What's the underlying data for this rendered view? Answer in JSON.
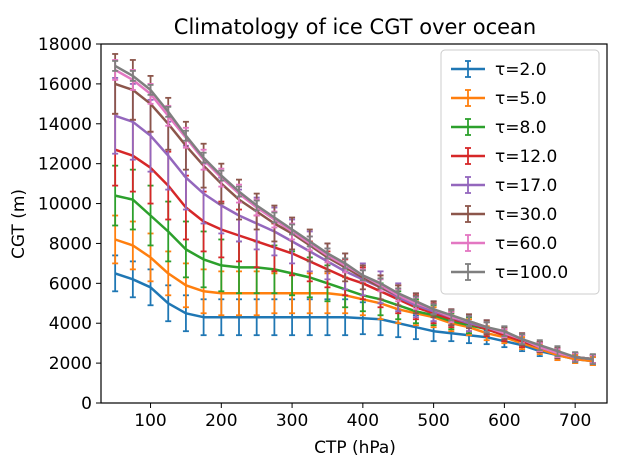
{
  "chart_data": {
    "type": "line",
    "title": "Climatology of ice CGT over ocean",
    "xlabel": "CTP (hPa)",
    "ylabel": "CGT (m)",
    "xlim": [
      30,
      745
    ],
    "ylim": [
      0,
      18000
    ],
    "xticks": [
      100,
      200,
      300,
      400,
      500,
      600,
      700
    ],
    "yticks": [
      0,
      2000,
      4000,
      6000,
      8000,
      10000,
      12000,
      14000,
      16000,
      18000
    ],
    "grid": false,
    "legend_position": "top-right",
    "legend_symbol": "τ",
    "x": [
      50,
      75,
      100,
      125,
      150,
      175,
      200,
      225,
      250,
      275,
      300,
      325,
      350,
      375,
      400,
      425,
      450,
      475,
      500,
      525,
      550,
      575,
      600,
      625,
      650,
      675,
      700,
      725
    ],
    "series": [
      {
        "name": "τ=2.0",
        "color": "#1f77b4",
        "values": [
          6500,
          6200,
          5800,
          5000,
          4500,
          4300,
          4300,
          4300,
          4300,
          4300,
          4300,
          4300,
          4300,
          4300,
          4250,
          4200,
          4000,
          3800,
          3600,
          3500,
          3400,
          3300,
          3100,
          2900,
          2600,
          2400,
          2200,
          2100
        ],
        "err": [
          900,
          900,
          900,
          900,
          900,
          900,
          900,
          900,
          900,
          900,
          900,
          900,
          900,
          900,
          800,
          800,
          700,
          600,
          500,
          400,
          400,
          350,
          300,
          300,
          250,
          250,
          200,
          200
        ]
      },
      {
        "name": "τ=5.0",
        "color": "#ff7f0e",
        "values": [
          8200,
          7900,
          7300,
          6500,
          5900,
          5600,
          5500,
          5500,
          5500,
          5500,
          5500,
          5500,
          5500,
          5400,
          5200,
          5000,
          4700,
          4500,
          4300,
          4000,
          3800,
          3500,
          3300,
          3000,
          2700,
          2400,
          2200,
          2100
        ],
        "err": [
          1200,
          1200,
          1200,
          1100,
          1100,
          1100,
          1100,
          1100,
          1100,
          1000,
          1000,
          1000,
          1000,
          900,
          800,
          800,
          700,
          600,
          500,
          400,
          400,
          350,
          300,
          300,
          250,
          250,
          200,
          200
        ]
      },
      {
        "name": "τ=8.0",
        "color": "#2ca02c",
        "values": [
          10400,
          10200,
          9400,
          8600,
          7700,
          7200,
          6900,
          6800,
          6800,
          6700,
          6500,
          6300,
          6000,
          5700,
          5400,
          5200,
          4900,
          4600,
          4400,
          4100,
          3900,
          3700,
          3400,
          3100,
          2800,
          2500,
          2300,
          2200
        ],
        "err": [
          1500,
          1500,
          1500,
          1500,
          1400,
          1400,
          1300,
          1300,
          1300,
          1200,
          1100,
          1000,
          900,
          900,
          800,
          800,
          700,
          600,
          500,
          400,
          400,
          350,
          300,
          300,
          250,
          250,
          200,
          200
        ]
      },
      {
        "name": "τ=12.0",
        "color": "#d62728",
        "values": [
          12700,
          12400,
          11800,
          10900,
          9800,
          9100,
          8700,
          8400,
          8100,
          7800,
          7500,
          7100,
          6700,
          6300,
          6000,
          5600,
          5200,
          4800,
          4500,
          4200,
          4000,
          3700,
          3400,
          3100,
          2800,
          2500,
          2300,
          2200
        ],
        "err": [
          1800,
          1800,
          1800,
          1700,
          1600,
          1500,
          1400,
          1300,
          1300,
          1200,
          1100,
          1000,
          900,
          900,
          800,
          800,
          700,
          600,
          500,
          400,
          400,
          350,
          300,
          300,
          250,
          250,
          200,
          200
        ]
      },
      {
        "name": "τ=17.0",
        "color": "#9467bd",
        "values": [
          14400,
          14100,
          13400,
          12400,
          11300,
          10500,
          9900,
          9400,
          9000,
          8600,
          8100,
          7600,
          7100,
          6600,
          6200,
          5800,
          5300,
          4900,
          4600,
          4300,
          4000,
          3800,
          3500,
          3200,
          2800,
          2500,
          2300,
          2200
        ],
        "err": [
          1900,
          1900,
          1800,
          1700,
          1600,
          1500,
          1400,
          1300,
          1300,
          1200,
          1100,
          1000,
          900,
          900,
          800,
          800,
          700,
          600,
          500,
          400,
          400,
          350,
          300,
          300,
          250,
          250,
          200,
          200
        ]
      },
      {
        "name": "τ=30.0",
        "color": "#8c564b",
        "values": [
          16000,
          15700,
          15000,
          14000,
          12900,
          11900,
          11000,
          10200,
          9600,
          9000,
          8500,
          7900,
          7300,
          6800,
          6300,
          5800,
          5400,
          5000,
          4700,
          4300,
          4100,
          3800,
          3500,
          3200,
          2800,
          2500,
          2300,
          2200
        ],
        "err": [
          1500,
          1500,
          1400,
          1300,
          1200,
          1100,
          1000,
          1000,
          900,
          900,
          800,
          800,
          700,
          700,
          600,
          600,
          500,
          500,
          400,
          400,
          350,
          350,
          300,
          300,
          250,
          250,
          200,
          200
        ]
      },
      {
        "name": "τ=60.0",
        "color": "#e377c2",
        "values": [
          16700,
          16200,
          15500,
          14400,
          13300,
          12200,
          11300,
          10500,
          9800,
          9200,
          8600,
          8000,
          7400,
          6900,
          6400,
          5900,
          5400,
          5000,
          4700,
          4300,
          4100,
          3800,
          3500,
          3200,
          2800,
          2500,
          2300,
          2200
        ],
        "err": [
          500,
          500,
          500,
          500,
          500,
          500,
          450,
          450,
          400,
          400,
          400,
          350,
          350,
          350,
          300,
          300,
          300,
          300,
          250,
          250,
          250,
          250,
          200,
          200,
          200,
          200,
          200,
          200
        ]
      },
      {
        "name": "τ=100.0",
        "color": "#7f7f7f",
        "values": [
          16900,
          16400,
          15700,
          14600,
          13400,
          12300,
          11400,
          10600,
          9900,
          9300,
          8700,
          8100,
          7500,
          7000,
          6400,
          6000,
          5500,
          5100,
          4700,
          4400,
          4100,
          3800,
          3600,
          3200,
          2900,
          2600,
          2300,
          2200
        ],
        "err": [
          250,
          250,
          250,
          250,
          250,
          250,
          250,
          250,
          250,
          250,
          250,
          250,
          250,
          250,
          250,
          250,
          250,
          250,
          250,
          250,
          250,
          250,
          250,
          250,
          250,
          250,
          250,
          250
        ]
      }
    ]
  }
}
